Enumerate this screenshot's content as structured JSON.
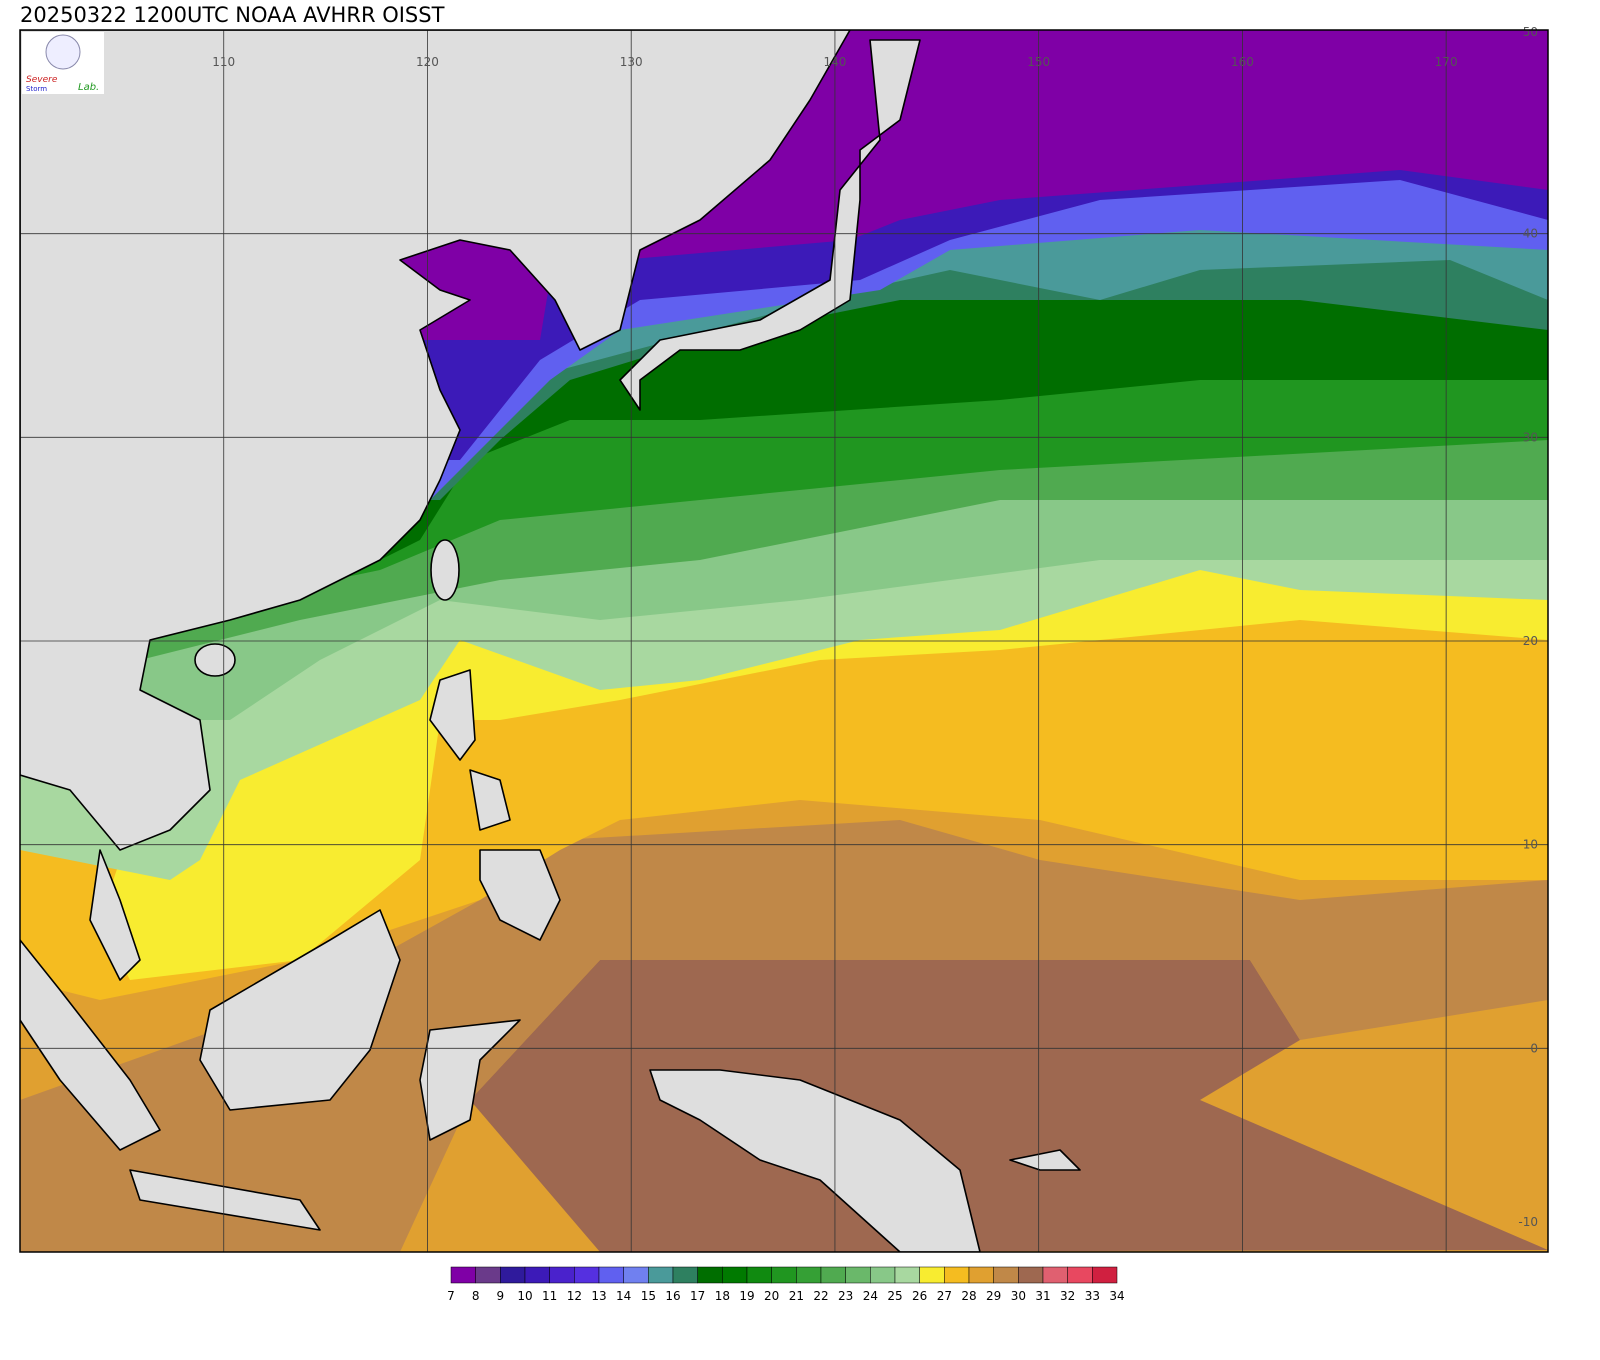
{
  "title": "20250322 1200UTC NOAA AVHRR OISST",
  "logo": [
    "Severe",
    "Storm",
    "Lab."
  ],
  "map": {
    "xlim": [
      100,
      175
    ],
    "ylim": [
      -10,
      50
    ],
    "lon_labels": [
      110,
      120,
      130,
      140,
      150,
      160,
      170
    ],
    "lat_labels": [
      50,
      40,
      30,
      20,
      10,
      0,
      -10
    ]
  },
  "colorbar": {
    "levels": [
      7,
      8,
      9,
      10,
      11,
      12,
      13,
      14,
      15,
      16,
      17,
      18,
      19,
      20,
      21,
      22,
      23,
      24,
      25,
      26,
      27,
      28,
      29,
      30,
      31,
      32,
      33,
      34
    ],
    "colors": [
      "#7f00a6",
      "#6a3a8a",
      "#2f1a9c",
      "#3c1ab8",
      "#4a22cc",
      "#5530e0",
      "#6060f0",
      "#7080f0",
      "#4a9a9a",
      "#2e8060",
      "#006e00",
      "#007a00",
      "#108a10",
      "#209620",
      "#35a035",
      "#50aa50",
      "#6ab86a",
      "#88c888",
      "#a8d8a0",
      "#f8ec30",
      "#f5bc20",
      "#e0a030",
      "#c08848",
      "#9e6850",
      "#e06070",
      "#e84860",
      "#d02040"
    ]
  }
}
